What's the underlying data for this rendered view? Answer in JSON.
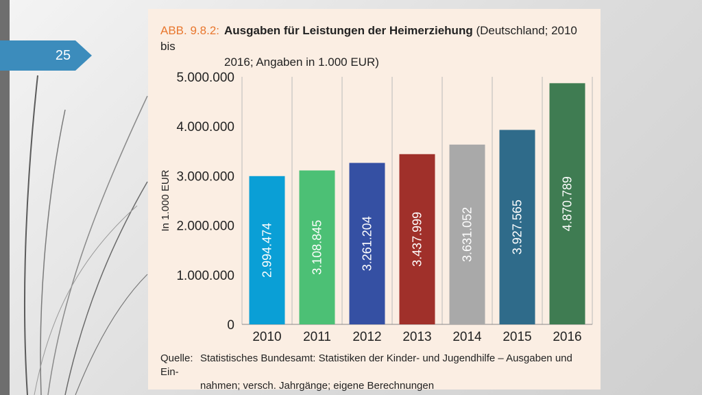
{
  "slide": {
    "number": "25"
  },
  "figure": {
    "label": "ABB. 9.8.2:",
    "title_main": "Ausgaben für Leistungen der Heimerziehung",
    "title_rest": "(Deutschland; 2010 bis",
    "title_line2": "2016; Angaben in 1.000 EUR)",
    "source_label": "Quelle:",
    "source_line1": "Statistisches Bundesamt: Statistiken der Kinder- und Jugendhilfe – Ausgaben und Ein-",
    "source_line2": "nahmen; versch. Jahrgänge; eigene Berechnungen"
  },
  "chart_data": {
    "type": "bar",
    "ylabel": "In 1.000 EUR",
    "ylim": [
      0,
      5000000
    ],
    "yticks": [
      0,
      1000000,
      2000000,
      3000000,
      4000000,
      5000000
    ],
    "ytick_labels": [
      "0",
      "1.000.000",
      "2.000.000",
      "3.000.000",
      "4.000.000",
      "5.000.000"
    ],
    "grid": "vertical lines between categories",
    "categories": [
      "2010",
      "2011",
      "2012",
      "2013",
      "2014",
      "2015",
      "2016"
    ],
    "values": [
      2994474,
      3108845,
      3261204,
      3437999,
      3631052,
      3927565,
      4870789
    ],
    "value_labels": [
      "2.994.474",
      "3.108.845",
      "3.261.204",
      "3.437.999",
      "3.631.052",
      "3.927.565",
      "4.870.789"
    ],
    "colors": [
      "#0a9fd6",
      "#4cc075",
      "#3550a3",
      "#a0302a",
      "#a9a9a9",
      "#2f6b8a",
      "#3f7c52"
    ]
  }
}
